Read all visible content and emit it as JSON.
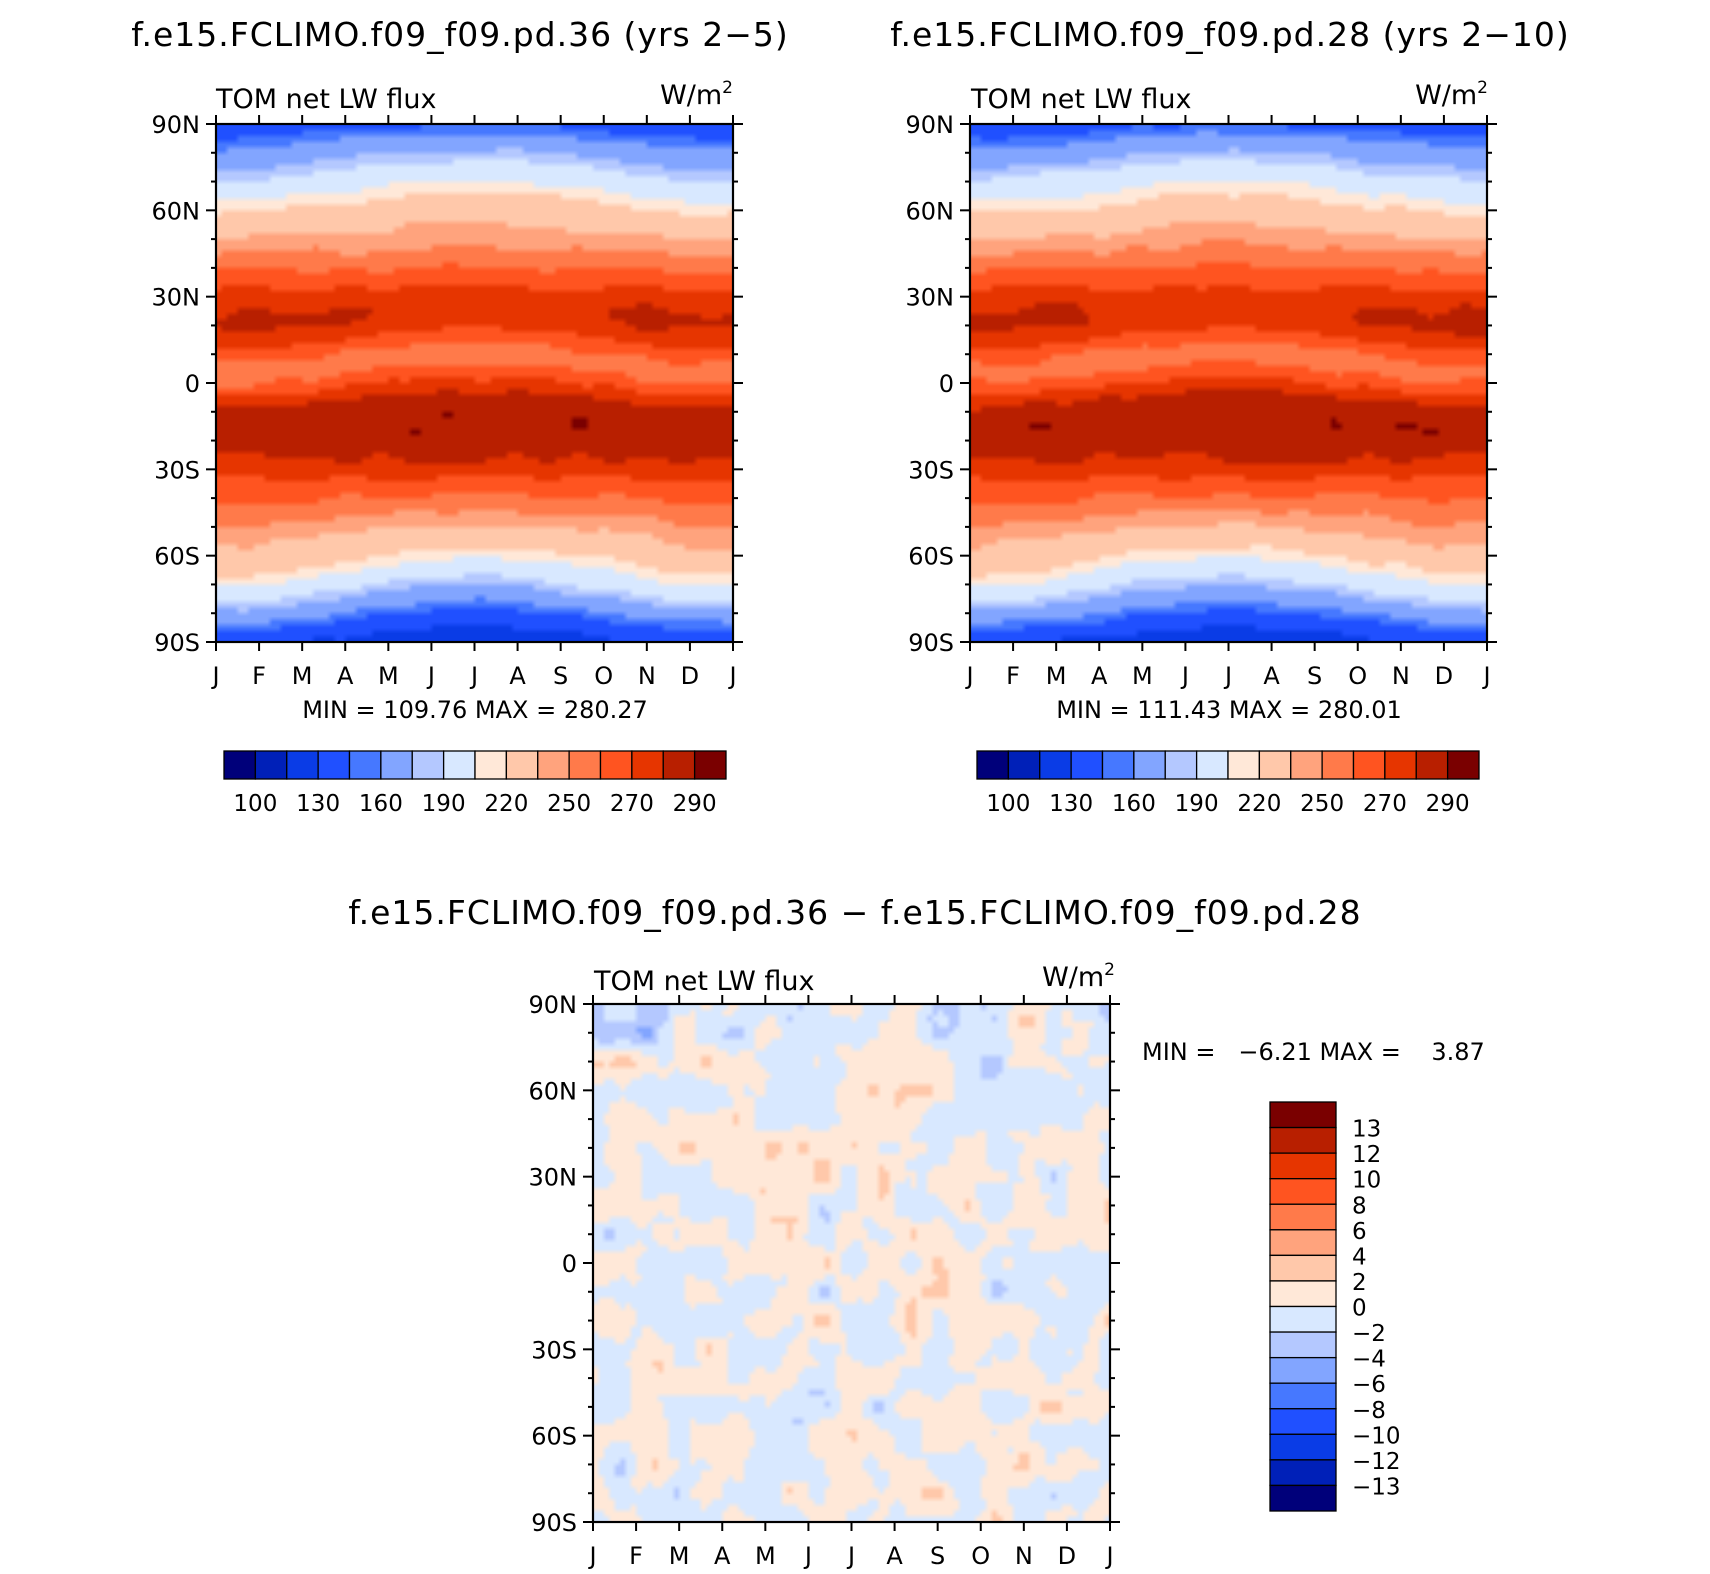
{
  "chart_data": [
    {
      "type": "heatmap",
      "title": "f.e15.FCLIMO.f09_f09.pd.36 (yrs 2−5)",
      "variable": "TOM net LW flux",
      "units_base": "W/m",
      "units_exp": "2",
      "ylabels": [
        "90N",
        "60N",
        "30N",
        "0",
        "30S",
        "60S",
        "90S"
      ],
      "xlabels": [
        "J",
        "F",
        "M",
        "A",
        "M",
        "J",
        "J",
        "A",
        "S",
        "O",
        "N",
        "D",
        "J"
      ],
      "xlim": [
        0,
        12
      ],
      "ylim": [
        -90,
        90
      ],
      "stats": "MIN = 109.76 MAX = 280.27",
      "min": 109.76,
      "max": 280.27,
      "field": "climatology",
      "colorbar": {
        "orientation": "horizontal",
        "levels": [
          90,
          100,
          110,
          130,
          150,
          160,
          180,
          190,
          210,
          220,
          240,
          250,
          260,
          270,
          280,
          290,
          300
        ],
        "tick_labels": [
          "100",
          "130",
          "160",
          "190",
          "220",
          "250",
          "270",
          "290"
        ],
        "colors": [
          "#00007a",
          "#0020b8",
          "#0a3ce6",
          "#2050ff",
          "#4678ff",
          "#82a5ff",
          "#b4c8ff",
          "#d8e8ff",
          "#ffe8d8",
          "#ffc8aa",
          "#ffa37d",
          "#ff7a4a",
          "#ff5420",
          "#e63500",
          "#b81f00",
          "#7a0000"
        ]
      }
    },
    {
      "type": "heatmap",
      "title": "f.e15.FCLIMO.f09_f09.pd.28 (yrs 2−10)",
      "variable": "TOM net LW flux",
      "units_base": "W/m",
      "units_exp": "2",
      "ylabels": [
        "90N",
        "60N",
        "30N",
        "0",
        "30S",
        "60S",
        "90S"
      ],
      "xlabels": [
        "J",
        "F",
        "M",
        "A",
        "M",
        "J",
        "J",
        "A",
        "S",
        "O",
        "N",
        "D",
        "J"
      ],
      "xlim": [
        0,
        12
      ],
      "ylim": [
        -90,
        90
      ],
      "stats": "MIN = 111.43 MAX = 280.01",
      "min": 111.43,
      "max": 280.01,
      "field": "climatology",
      "colorbar": {
        "orientation": "horizontal",
        "levels": [
          90,
          100,
          110,
          130,
          150,
          160,
          180,
          190,
          210,
          220,
          240,
          250,
          260,
          270,
          280,
          290,
          300
        ],
        "tick_labels": [
          "100",
          "130",
          "160",
          "190",
          "220",
          "250",
          "270",
          "290"
        ],
        "colors": [
          "#00007a",
          "#0020b8",
          "#0a3ce6",
          "#2050ff",
          "#4678ff",
          "#82a5ff",
          "#b4c8ff",
          "#d8e8ff",
          "#ffe8d8",
          "#ffc8aa",
          "#ffa37d",
          "#ff7a4a",
          "#ff5420",
          "#e63500",
          "#b81f00",
          "#7a0000"
        ]
      }
    },
    {
      "type": "heatmap",
      "title": "f.e15.FCLIMO.f09_f09.pd.36 − f.e15.FCLIMO.f09_f09.pd.28",
      "variable": "TOM net LW flux",
      "units_base": "W/m",
      "units_exp": "2",
      "ylabels": [
        "90N",
        "60N",
        "30N",
        "0",
        "30S",
        "60S",
        "90S"
      ],
      "xlabels": [
        "J",
        "F",
        "M",
        "A",
        "M",
        "J",
        "J",
        "A",
        "S",
        "O",
        "N",
        "D",
        "J"
      ],
      "xlim": [
        0,
        12
      ],
      "ylim": [
        -90,
        90
      ],
      "stats": "MIN =   −6.21 MAX =    3.87",
      "min": -6.21,
      "max": 3.87,
      "field": "difference",
      "colorbar": {
        "orientation": "vertical",
        "levels": [
          -15,
          -13,
          -12,
          -10,
          -8,
          -6,
          -4,
          -2,
          0,
          2,
          4,
          6,
          8,
          10,
          12,
          13,
          15
        ],
        "tick_labels": [
          "13",
          "12",
          "10",
          "8",
          "6",
          "4",
          "2",
          "0",
          "−2",
          "−4",
          "−6",
          "−8",
          "−10",
          "−12",
          "−13"
        ],
        "colors": [
          "#00007a",
          "#0020b8",
          "#0a3ce6",
          "#2050ff",
          "#4678ff",
          "#82a5ff",
          "#b4c8ff",
          "#d8e8ff",
          "#ffe8d8",
          "#ffc8aa",
          "#ffa37d",
          "#ff7a4a",
          "#ff5420",
          "#e63500",
          "#b81f00",
          "#7a0000"
        ]
      }
    }
  ]
}
